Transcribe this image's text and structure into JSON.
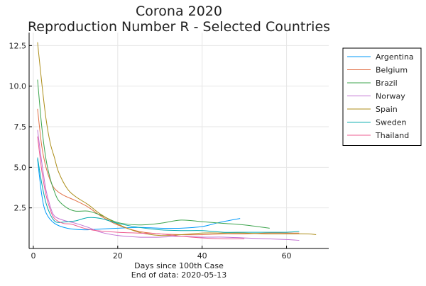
{
  "chart_data": {
    "type": "line",
    "title": "Corona 2020",
    "subtitle": "Reproduction Number R - Selected Countries",
    "xlabel": "Days since 100th Case",
    "xlabel_note": "End of data: 2020-05-13",
    "ylabel": "",
    "xlim": [
      -1,
      70
    ],
    "ylim": [
      0,
      13.3
    ],
    "xticks": [
      0,
      20,
      40,
      60
    ],
    "xtick_labels": [
      "0",
      "20",
      "40",
      "60"
    ],
    "yticks": [
      2.5,
      5.0,
      7.5,
      10.0,
      12.5
    ],
    "ytick_labels": [
      "2.5",
      "5.0",
      "7.5",
      "10.0",
      "12.5"
    ],
    "grid": true,
    "legend_position": "right",
    "series": [
      {
        "name": "Argentina",
        "color": "#009AFA",
        "x": [
          1,
          2,
          3,
          5,
          8,
          12,
          16,
          20,
          25,
          30,
          35,
          40,
          44,
          49
        ],
        "y": [
          5.5,
          3.3,
          2.2,
          1.55,
          1.25,
          1.15,
          1.2,
          1.25,
          1.3,
          1.25,
          1.25,
          1.35,
          1.6,
          1.85
        ]
      },
      {
        "name": "Belgium",
        "color": "#E26F46",
        "x": [
          1,
          2,
          3,
          4,
          5,
          7,
          10,
          13,
          16,
          20,
          25,
          30,
          35,
          40,
          45,
          50,
          55,
          60,
          63
        ],
        "y": [
          8.6,
          6.3,
          5.0,
          4.2,
          3.7,
          3.3,
          2.95,
          2.55,
          2.0,
          1.45,
          1.05,
          0.9,
          0.85,
          0.85,
          0.9,
          0.9,
          0.95,
          0.95,
          0.95
        ]
      },
      {
        "name": "Brazil",
        "color": "#3DA44D",
        "x": [
          1,
          2,
          3,
          4,
          5,
          6,
          8,
          10,
          13,
          16,
          20,
          25,
          30,
          35,
          40,
          45,
          50,
          56
        ],
        "y": [
          10.4,
          7.5,
          5.5,
          4.3,
          3.5,
          2.95,
          2.5,
          2.3,
          2.3,
          2.05,
          1.6,
          1.45,
          1.55,
          1.75,
          1.65,
          1.55,
          1.45,
          1.25
        ]
      },
      {
        "name": "Norway",
        "color": "#C271D2",
        "x": [
          1,
          2,
          3,
          4,
          5,
          7,
          10,
          13,
          16,
          20,
          25,
          30,
          35,
          40,
          45,
          50,
          55,
          60,
          63
        ],
        "y": [
          7.3,
          5.3,
          3.6,
          2.6,
          2.0,
          1.75,
          1.55,
          1.3,
          1.0,
          0.8,
          0.7,
          0.7,
          0.75,
          0.7,
          0.7,
          0.65,
          0.6,
          0.55,
          0.5
        ]
      },
      {
        "name": "Spain",
        "color": "#AC8D18",
        "x": [
          1,
          2,
          3,
          4,
          5,
          6,
          8,
          10,
          13,
          16,
          20,
          25,
          30,
          35,
          40,
          45,
          50,
          55,
          60,
          65,
          67
        ],
        "y": [
          12.7,
          10.2,
          8.0,
          6.5,
          5.6,
          4.7,
          3.7,
          3.2,
          2.7,
          2.1,
          1.5,
          1.0,
          0.8,
          0.85,
          0.95,
          0.95,
          0.95,
          0.9,
          0.9,
          0.9,
          0.85
        ]
      },
      {
        "name": "Sweden",
        "color": "#00A9AD",
        "x": [
          1,
          2,
          3,
          4,
          5,
          6,
          8,
          10,
          13,
          16,
          20,
          25,
          30,
          35,
          40,
          45,
          50,
          55,
          60,
          63
        ],
        "y": [
          5.6,
          4.0,
          2.8,
          2.1,
          1.7,
          1.6,
          1.65,
          1.7,
          1.9,
          1.85,
          1.55,
          1.3,
          1.15,
          1.1,
          1.1,
          1.0,
          1.0,
          1.0,
          1.0,
          1.05
        ]
      },
      {
        "name": "Thailand",
        "color": "#ED5D92",
        "x": [
          1,
          2,
          3,
          4,
          5,
          7,
          9,
          12,
          15,
          20,
          25,
          30,
          35,
          40,
          45,
          50
        ],
        "y": [
          6.9,
          4.8,
          3.3,
          2.4,
          1.85,
          1.55,
          1.5,
          1.25,
          1.1,
          1.0,
          0.95,
          0.9,
          0.75,
          0.65,
          0.6,
          0.6
        ]
      }
    ]
  }
}
